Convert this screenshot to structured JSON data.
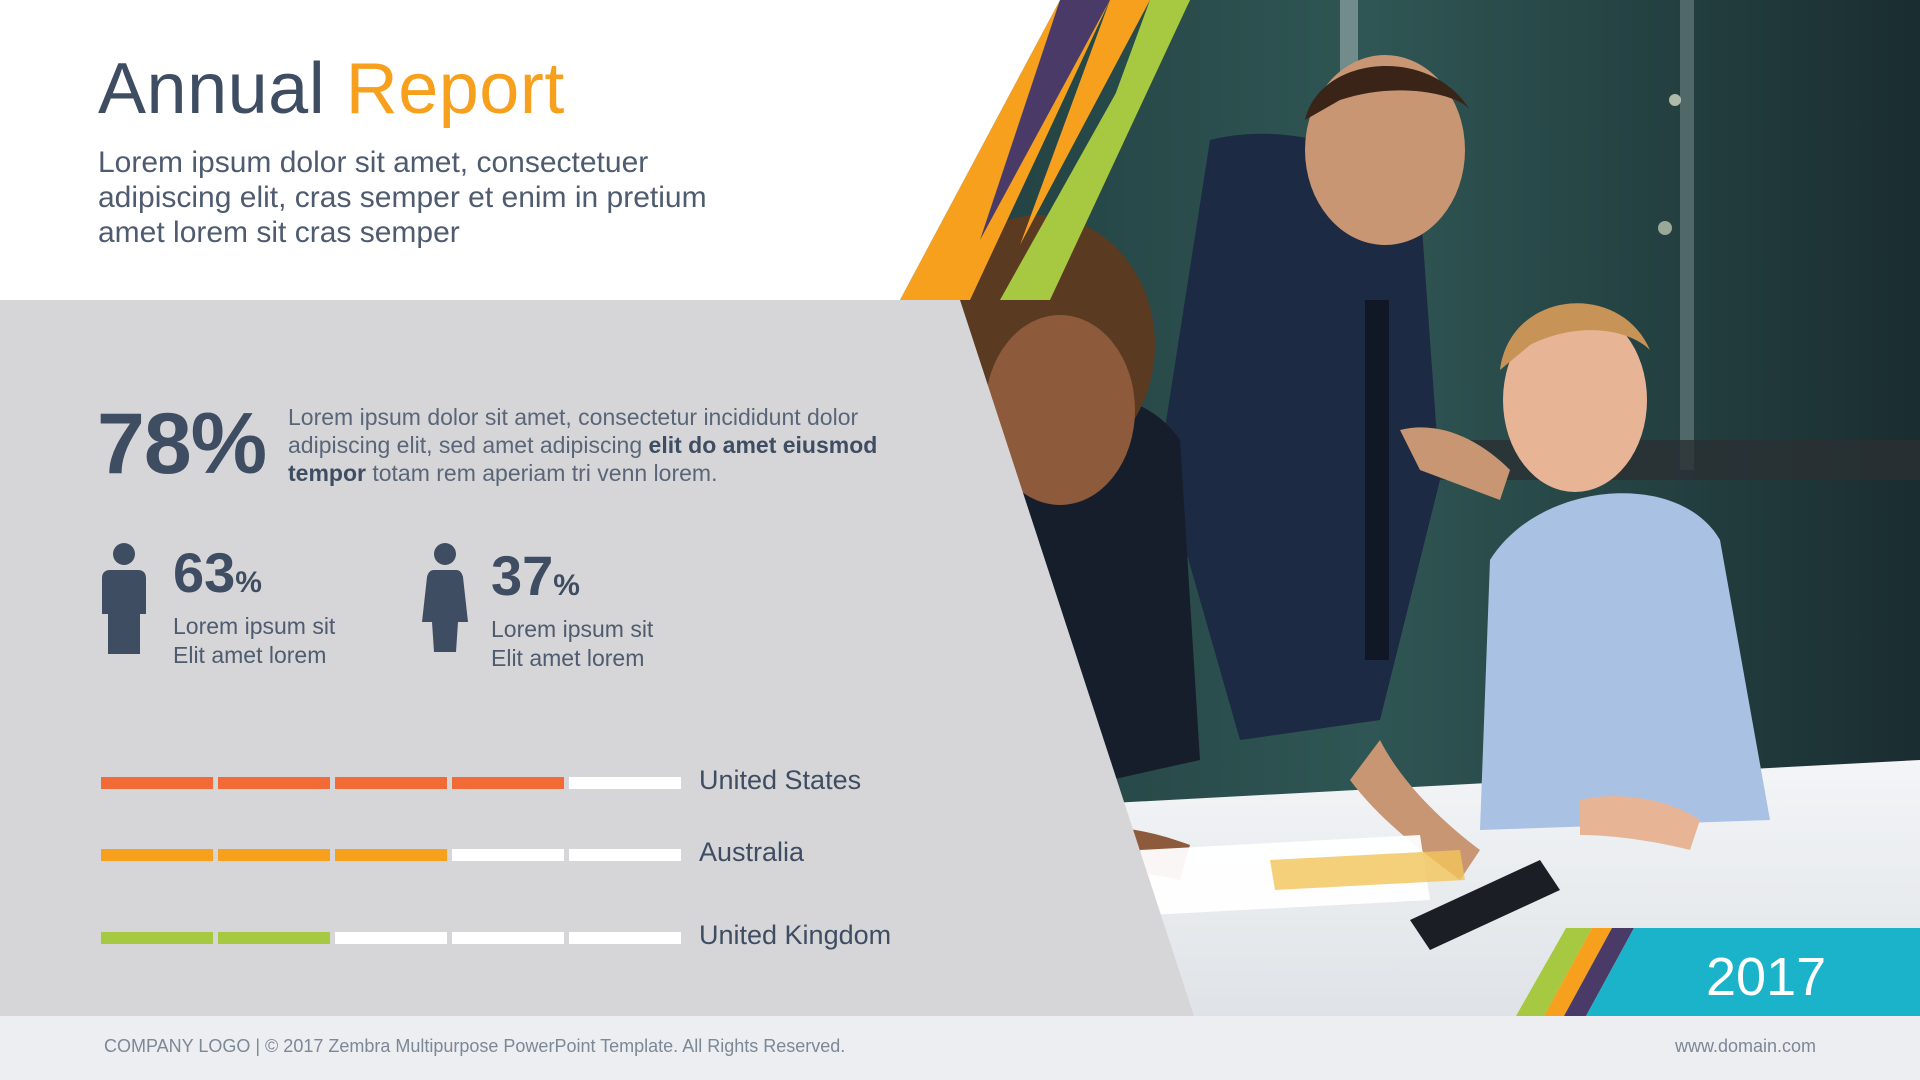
{
  "header": {
    "title_part1": "Annual",
    "title_part2": "Report",
    "subtitle": "Lorem ipsum dolor sit amet, consectetuer adipiscing elit, cras semper et enim in pretium amet lorem sit cras semper"
  },
  "highlight": {
    "value": "78%",
    "text_plain_1": "Lorem ipsum dolor sit amet, consectetur  incididunt dolor  adipiscing elit, sed amet adipiscing ",
    "text_bold": "elit do amet eiusmod tempor",
    "text_plain_2": " totam rem aperiam tri venn lorem."
  },
  "gender": [
    {
      "icon": "male-person-icon",
      "value": "63",
      "unit": "%",
      "caption_line1": "Lorem ipsum sit",
      "caption_line2": "Elit amet lorem"
    },
    {
      "icon": "female-person-icon",
      "value": "37",
      "unit": "%",
      "caption_line1": "Lorem ipsum sit",
      "caption_line2": "Elit amet lorem"
    }
  ],
  "country_bars": [
    {
      "label": "United States",
      "filled_segments": 4,
      "total_segments": 5,
      "color": "#f26a35"
    },
    {
      "label": "Australia",
      "filled_segments": 3,
      "total_segments": 5,
      "color": "#f7a01d"
    },
    {
      "label": "United Kingdom",
      "filled_segments": 2,
      "total_segments": 5,
      "color": "#a6c941"
    }
  ],
  "year": "2017",
  "footer": {
    "left": "COMPANY LOGO | © 2017 Zembra Multipurpose PowerPoint Template. All Rights Reserved.",
    "right": "www.domain.com"
  },
  "colors": {
    "dark": "#3f4d63",
    "orange": "#f7a01d",
    "purple": "#4a3a68",
    "green": "#a6c941",
    "teal": "#1ab3c9",
    "grey_panel": "#d6d6d8"
  }
}
